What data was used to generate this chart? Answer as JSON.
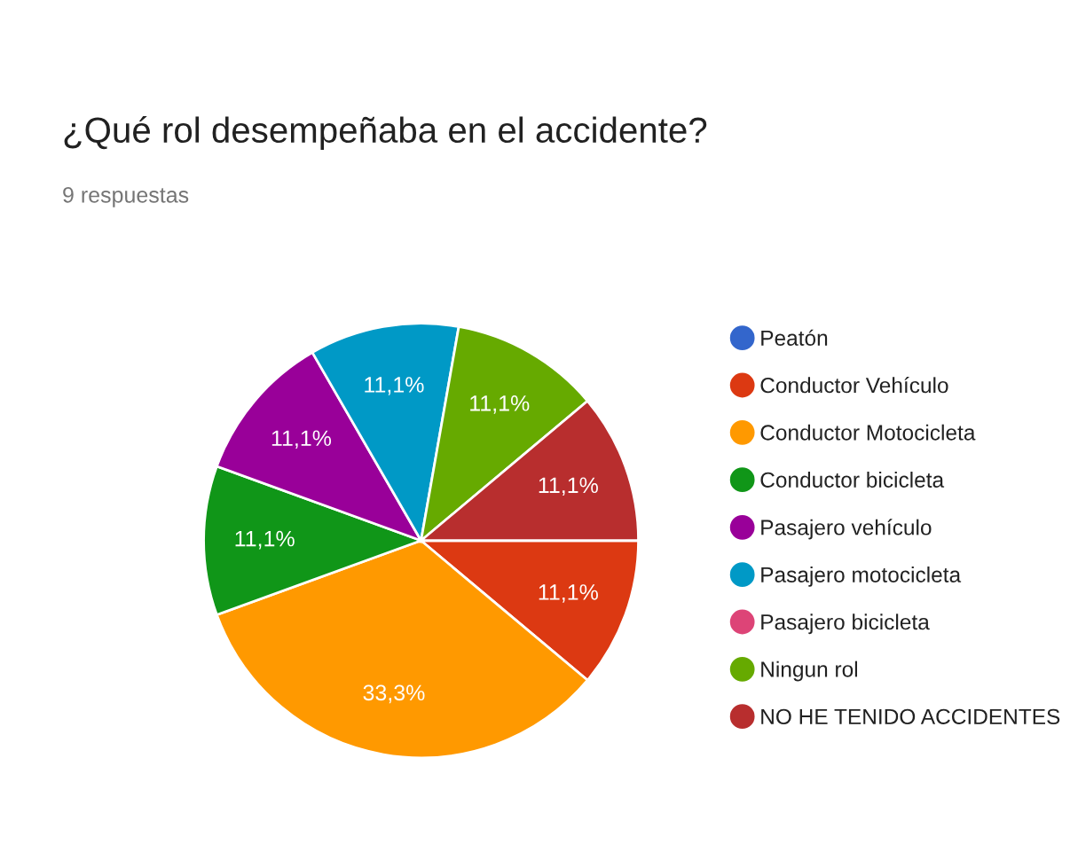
{
  "chart_data": {
    "type": "pie",
    "title": "¿Qué rol desempeñaba en el accidente?",
    "subtitle": "9 respuestas",
    "categories": [
      "Peatón",
      "Conductor Vehículo",
      "Conductor Motocicleta",
      "Conductor bicicleta",
      "Pasajero vehículo",
      "Pasajero motocicleta",
      "Pasajero bicicleta",
      "Ningun rol",
      "NO HE TENIDO ACCIDENTES"
    ],
    "values": [
      0,
      11.1,
      33.3,
      11.1,
      11.1,
      11.1,
      0,
      11.1,
      11.1
    ],
    "colors": [
      "#3366cc",
      "#dc3912",
      "#ff9900",
      "#109618",
      "#990099",
      "#0099c6",
      "#dd4477",
      "#66aa00",
      "#b82e2e"
    ],
    "value_labels": [
      null,
      "11,1%",
      "33,3%",
      "11,1%",
      "11,1%",
      "11,1%",
      null,
      "11,1%",
      "11,1%"
    ],
    "legend": "right"
  }
}
